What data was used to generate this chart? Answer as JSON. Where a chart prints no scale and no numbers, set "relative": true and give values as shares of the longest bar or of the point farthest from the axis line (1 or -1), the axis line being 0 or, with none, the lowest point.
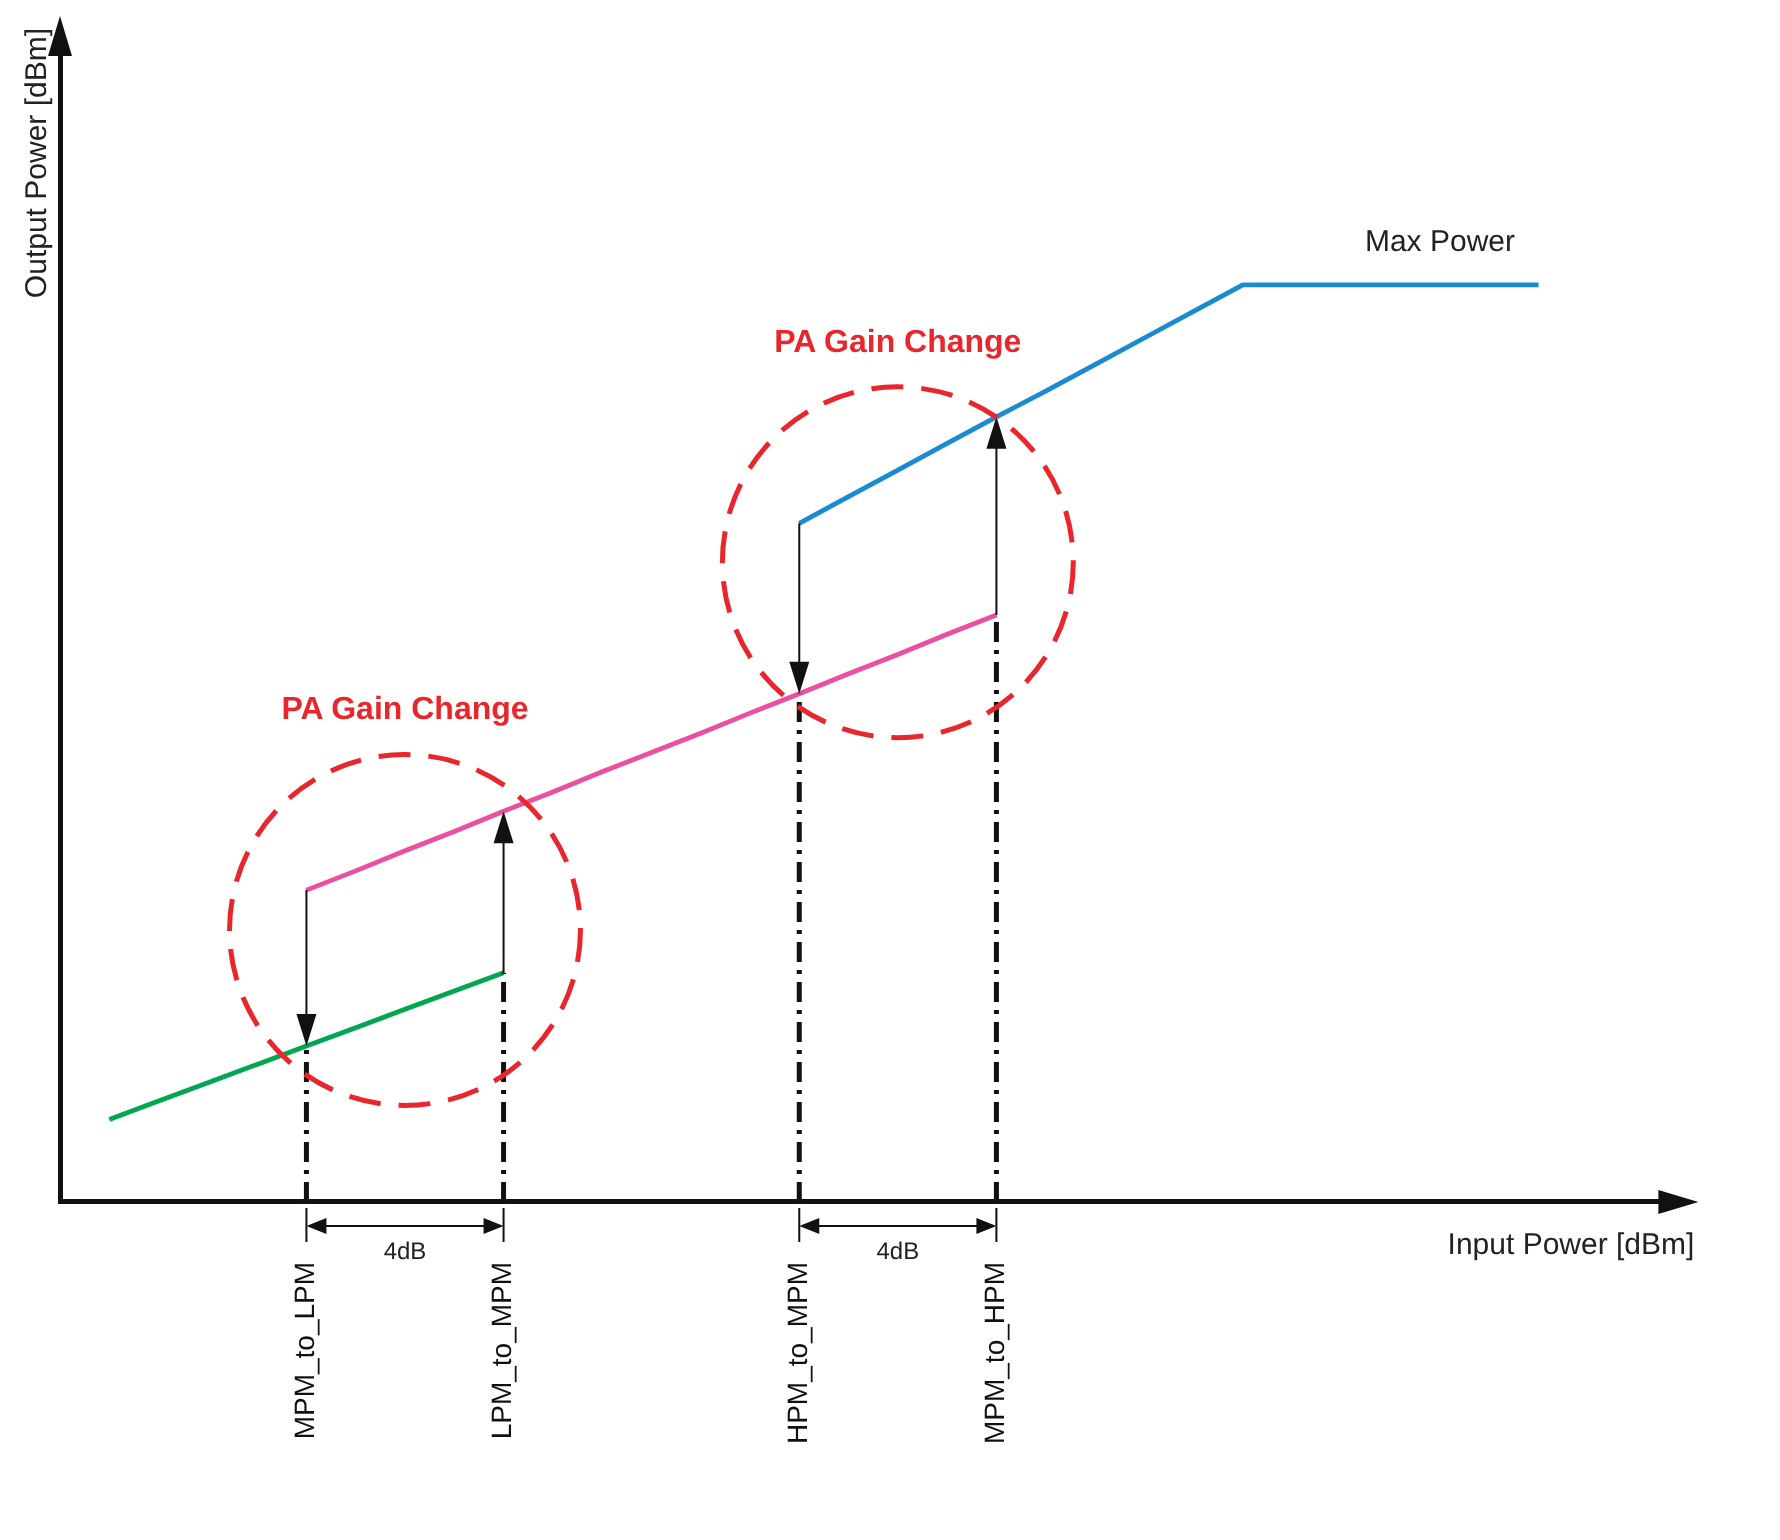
{
  "chart_data": {
    "type": "line",
    "relative": true,
    "xlabel": "Input Power [dBm]",
    "ylabel": "Output Power [dBm]",
    "categories": [
      null,
      null,
      null,
      null,
      null,
      "MPM_to_LPM",
      null,
      null,
      null,
      "LPM_to_MPM",
      null,
      null,
      null,
      null,
      null,
      "HPM_to_MPM",
      null,
      null,
      null,
      "MPM_to_HPM",
      null,
      null,
      null,
      null,
      null,
      null,
      null,
      null,
      null,
      null,
      null,
      null,
      null,
      null
    ],
    "series": [
      {
        "color": "#00a651",
        "values": [
          null,
          0.09,
          0.11,
          0.13,
          0.15,
          0.17,
          0.19,
          0.21,
          0.23,
          0.25,
          null,
          null,
          null,
          null,
          null,
          null,
          null,
          null,
          null,
          null,
          null,
          null,
          null,
          null,
          null,
          null,
          null,
          null,
          null,
          null,
          null,
          null,
          null,
          null
        ]
      },
      {
        "color": "#ec4f9f",
        "values": [
          null,
          null,
          null,
          null,
          null,
          0.34,
          0.361,
          0.383,
          0.404,
          0.426,
          0.447,
          0.469,
          0.49,
          0.511,
          0.533,
          0.554,
          0.576,
          0.597,
          0.619,
          0.64,
          null,
          null,
          null,
          null,
          null,
          null,
          null,
          null,
          null,
          null,
          null,
          null,
          null,
          null
        ]
      },
      {
        "color": "#1a8bd0",
        "values": [
          null,
          null,
          null,
          null,
          null,
          null,
          null,
          null,
          null,
          null,
          null,
          null,
          null,
          null,
          null,
          0.74,
          0.769,
          0.798,
          0.827,
          0.856,
          0.884,
          0.913,
          0.942,
          0.971,
          1,
          1,
          1,
          1,
          1,
          1,
          1,
          null,
          null,
          null
        ]
      }
    ],
    "annotations": [
      "PA Gain Change",
      "PA Gain Change",
      "Max Power",
      "4dB",
      "4dB"
    ],
    "grid": false,
    "legend": false,
    "marker": "none",
    "line_style": "solid"
  }
}
